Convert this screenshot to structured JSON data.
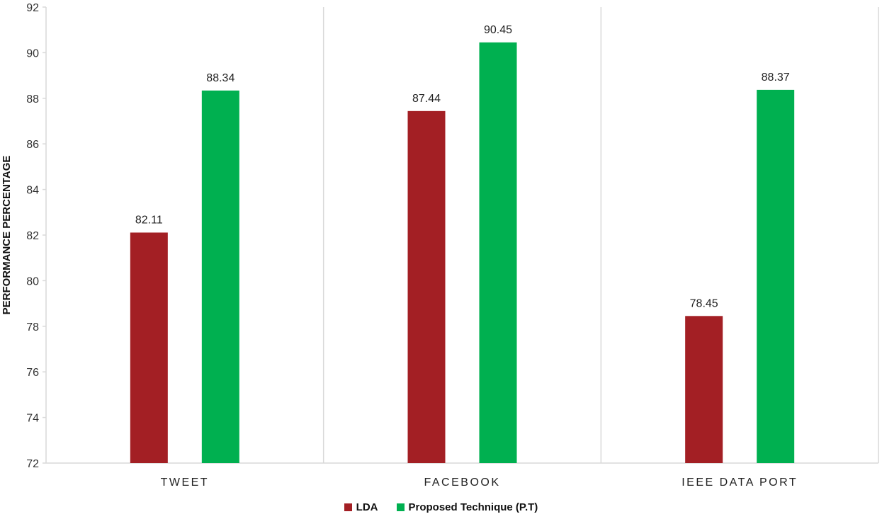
{
  "chart_data": {
    "type": "bar",
    "categories": [
      "TWEET",
      "FACEBOOK",
      "IEEE DATA  PORT"
    ],
    "series": [
      {
        "name": "LDA",
        "values": [
          82.11,
          87.44,
          78.45
        ],
        "color": "#A31F24"
      },
      {
        "name": "Proposed Technique (P.T)",
        "values": [
          88.34,
          90.45,
          88.37
        ],
        "color": "#00B050"
      }
    ],
    "title": "",
    "xlabel": "",
    "ylabel": "PERFORMANCE PERCENTAGE",
    "ylim": [
      72,
      92
    ],
    "yticks": [
      72,
      74,
      76,
      78,
      80,
      82,
      84,
      86,
      88,
      90,
      92
    ],
    "grid": false,
    "category_separators": true,
    "legend_position": "bottom"
  }
}
